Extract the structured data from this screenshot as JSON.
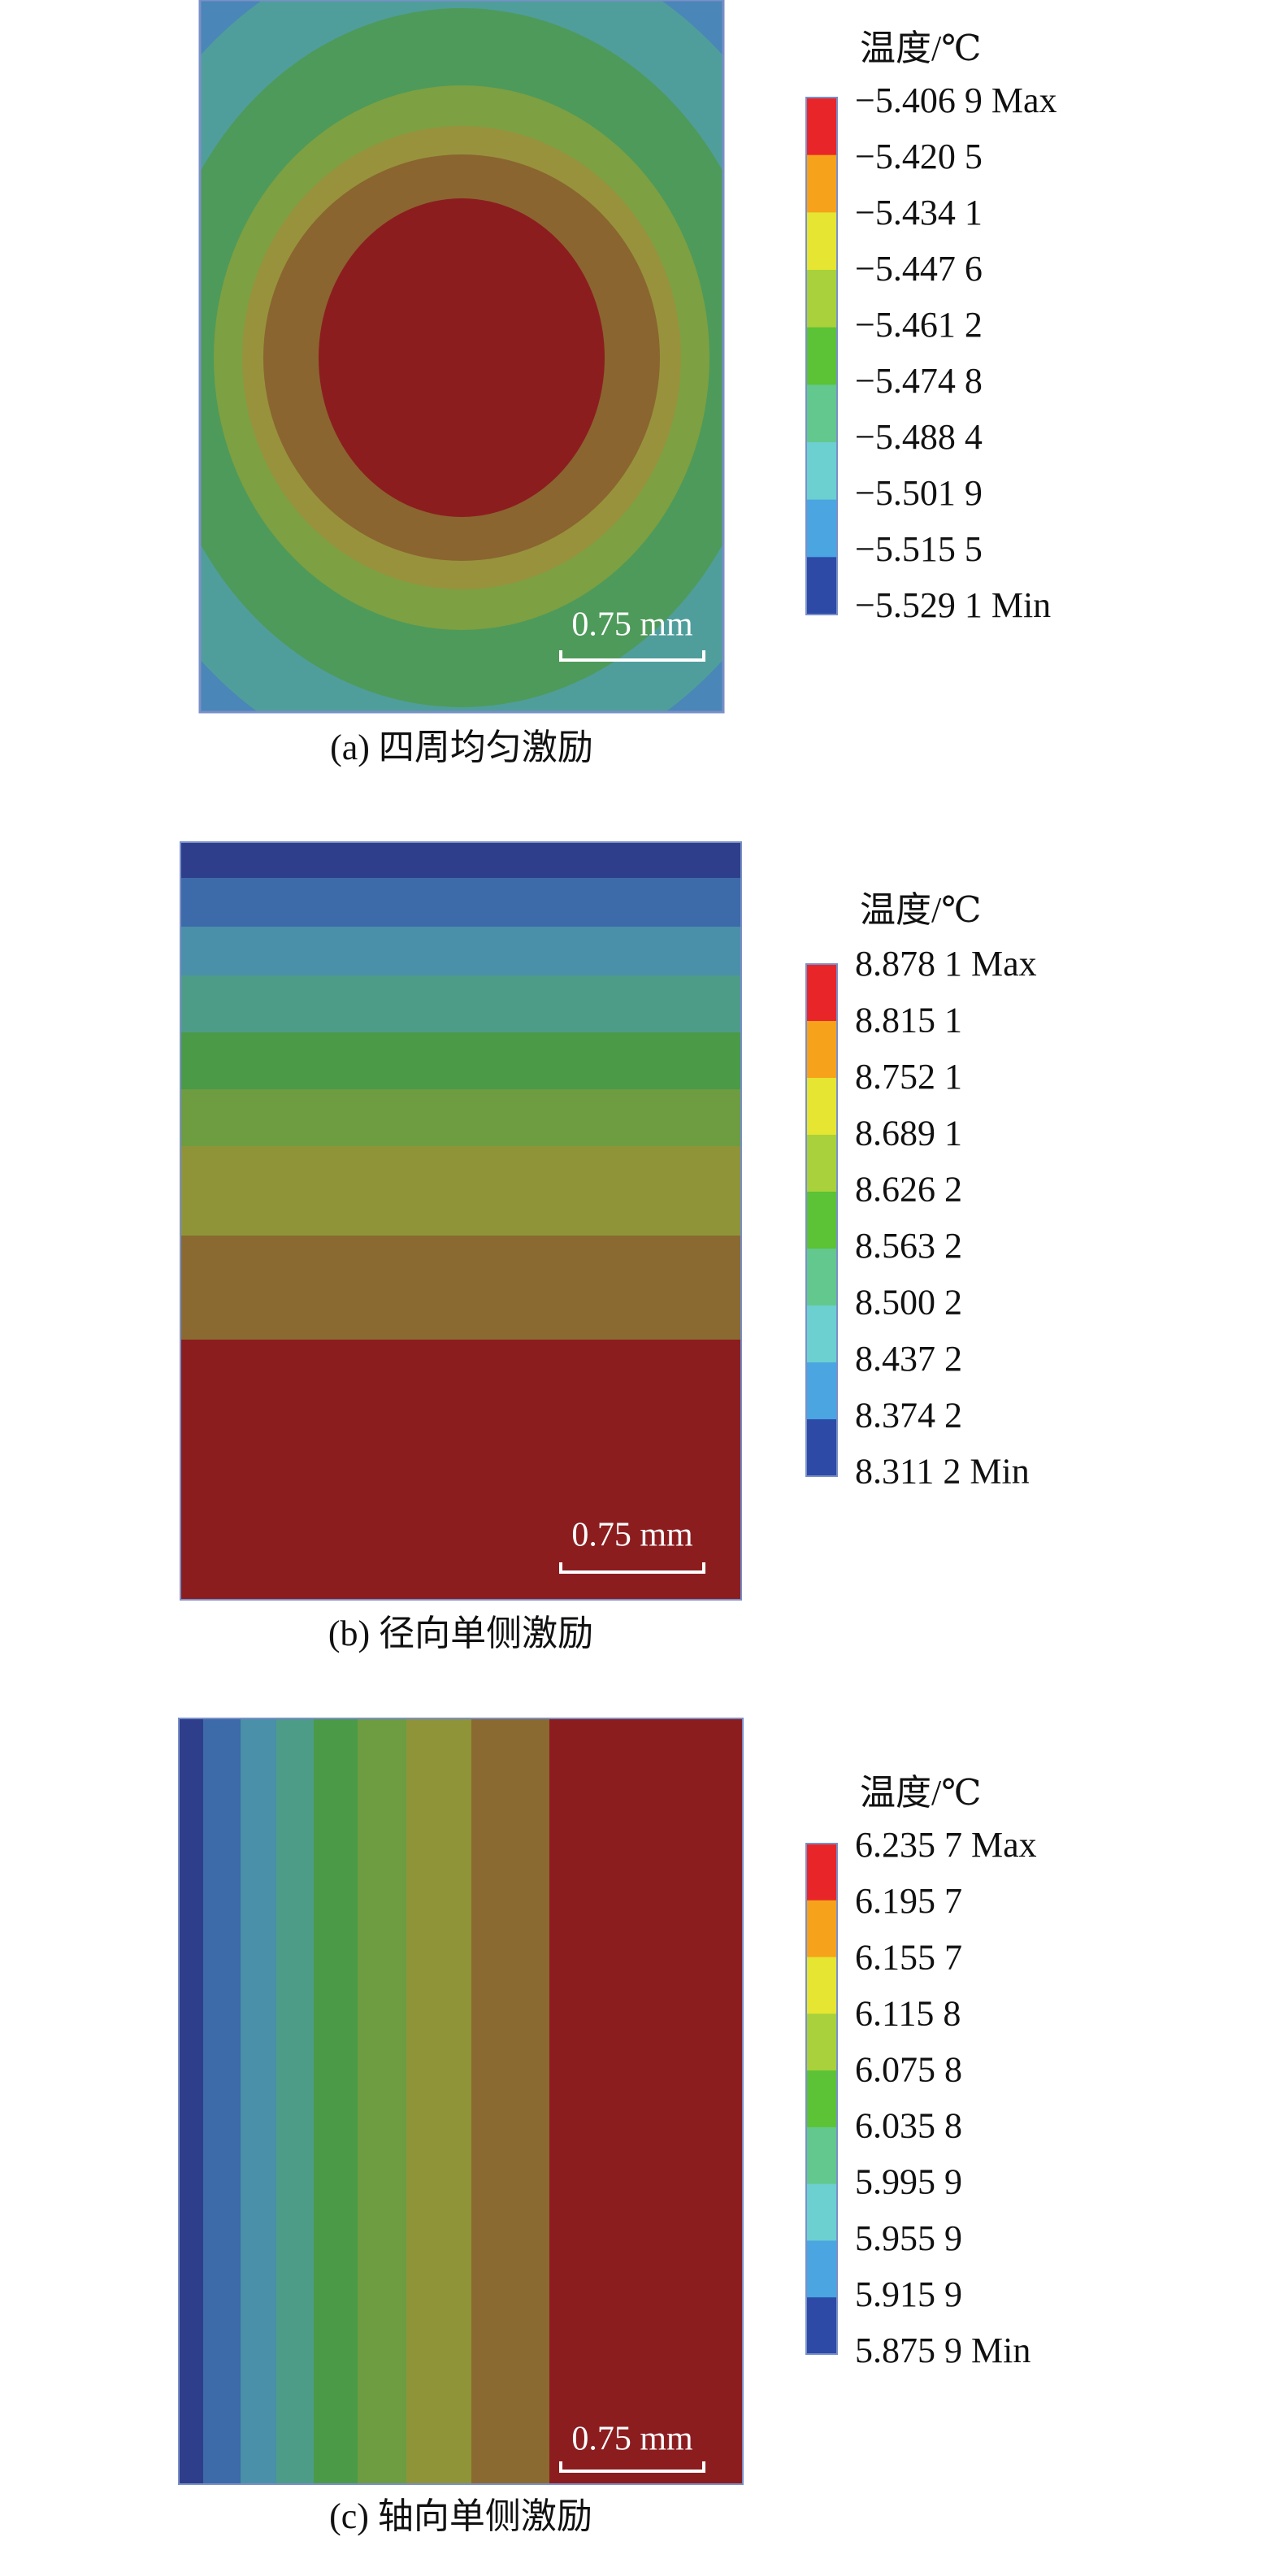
{
  "panels": [
    {
      "legend": {
        "title": "温度/℃",
        "labels": [
          "−5.406 9 Max",
          "−5.420 5",
          "−5.434 1",
          "−5.447 6",
          "−5.461 2",
          "−5.474 8",
          "−5.488 4",
          "−5.501 9",
          "−5.515 5",
          "−5.529 1 Min"
        ]
      },
      "scale_bar": "0.75 mm",
      "caption": "(a) 四周均匀激励"
    },
    {
      "legend": {
        "title": "温度/℃",
        "labels": [
          "8.878 1 Max",
          "8.815 1",
          "8.752 1",
          "8.689 1",
          "8.626 2",
          "8.563 2",
          "8.500 2",
          "8.437 2",
          "8.374 2",
          "8.311 2 Min"
        ]
      },
      "scale_bar": "0.75 mm",
      "caption": "(b) 径向单侧激励"
    },
    {
      "legend": {
        "title": "温度/℃",
        "labels": [
          "6.235 7 Max",
          "6.195 7",
          "6.155 7",
          "6.115 8",
          "6.075 8",
          "6.035 8",
          "5.995 9",
          "5.955 9",
          "5.915 9",
          "5.875 9 Min"
        ]
      },
      "scale_bar": "0.75 mm",
      "caption": "(c) 轴向单侧激励"
    }
  ]
}
